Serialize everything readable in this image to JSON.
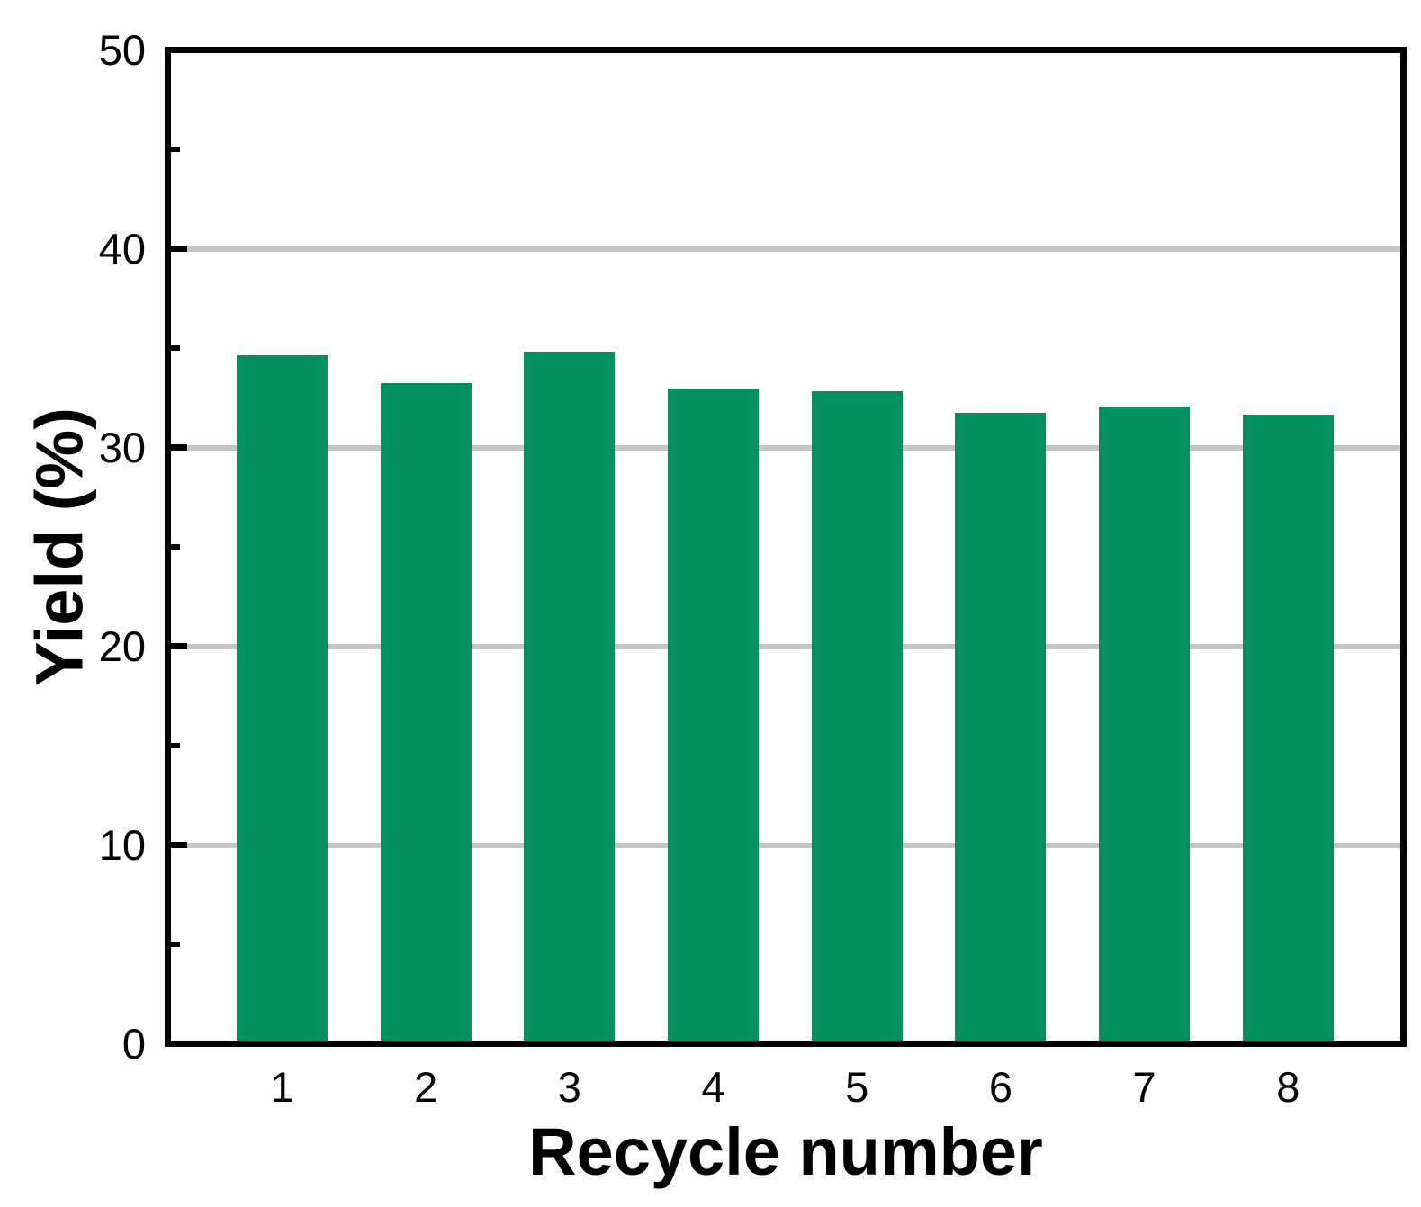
{
  "chart_data": {
    "type": "bar",
    "title": "",
    "xlabel": "Recycle number",
    "ylabel": "Yield (%)",
    "categories": [
      "1",
      "2",
      "3",
      "4",
      "5",
      "6",
      "7",
      "8"
    ],
    "values": [
      34.7,
      33.3,
      34.9,
      33.0,
      32.9,
      31.8,
      32.1,
      31.7
    ],
    "ylim": [
      0,
      50
    ],
    "ytick_major": [
      0,
      10,
      20,
      30,
      40,
      50
    ],
    "ytick_minor": [
      5,
      15,
      25,
      35,
      45
    ],
    "gridline_values": [
      10,
      20,
      30,
      40
    ],
    "grid": "horizontal-major-only",
    "legend_position": "none",
    "colors": {
      "bar": "#00915E",
      "gridline": "#C5C5C5",
      "axis": "#000000",
      "background": "#FFFFFF"
    }
  }
}
